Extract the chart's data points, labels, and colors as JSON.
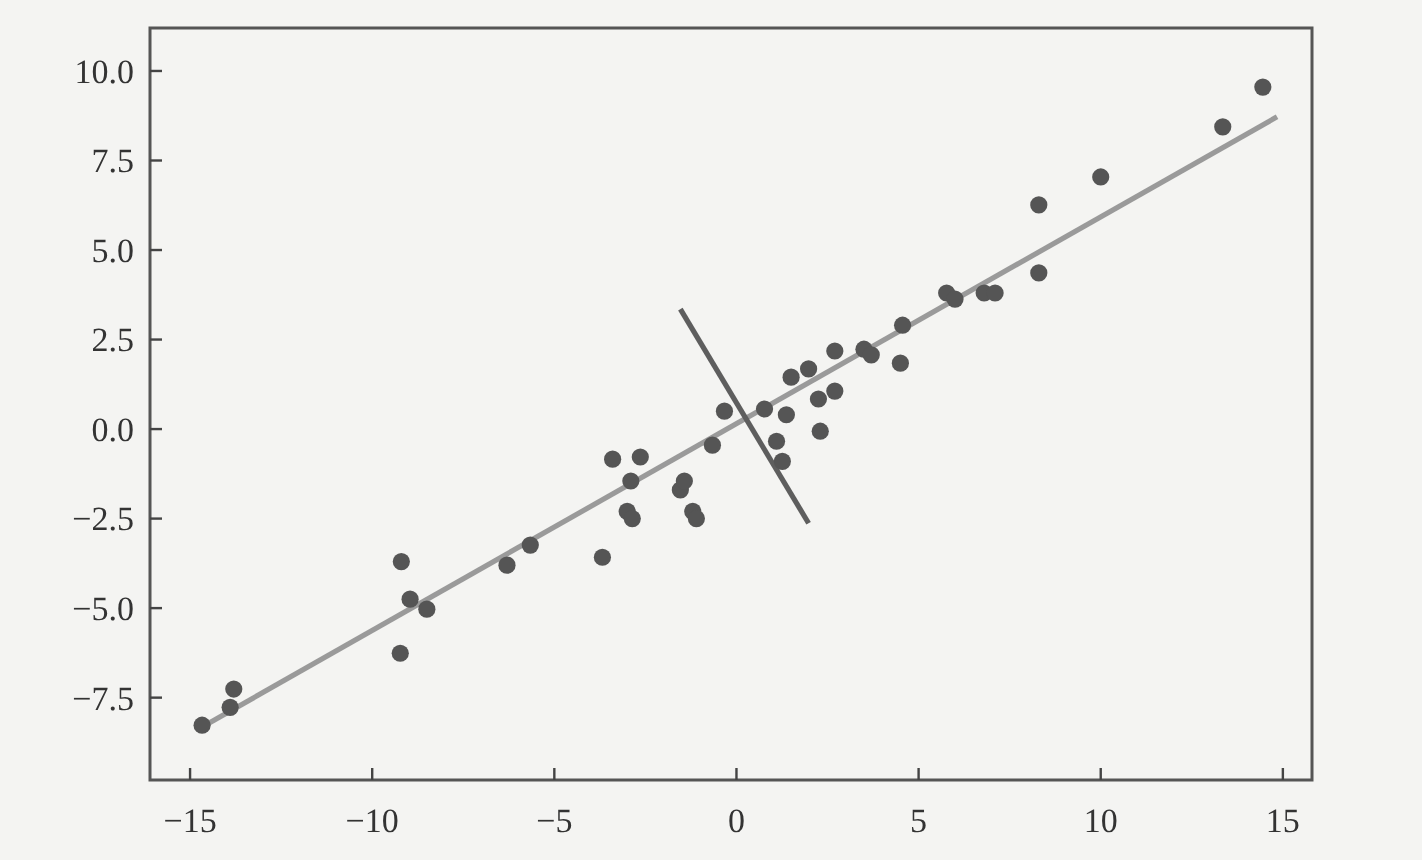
{
  "chart_data": {
    "type": "scatter",
    "xlim": [
      -16.1,
      15.8
    ],
    "ylim": [
      -9.8,
      11.2
    ],
    "xticks": [
      {
        "value": -15,
        "label": "−15"
      },
      {
        "value": -10,
        "label": "−10"
      },
      {
        "value": -5,
        "label": "−5"
      },
      0,
      5,
      10,
      15
    ],
    "yticks": [
      {
        "value": -7.5,
        "label": "−7.5"
      },
      {
        "value": -5,
        "label": "−5.0"
      },
      {
        "value": -2.5,
        "label": "−2.5"
      },
      {
        "value": 0,
        "label": "0.0"
      },
      {
        "value": 2.5,
        "label": "2.5"
      },
      {
        "value": 5,
        "label": "5.0"
      },
      {
        "value": 7.5,
        "label": "7.5"
      },
      {
        "value": 10,
        "label": "10.0"
      }
    ],
    "grid": false,
    "marker": "circle",
    "series": [
      {
        "type": "line",
        "color": "#9a9a9a",
        "x": [
          -14.67,
          14.84
        ],
        "values": [
          -8.32,
          8.72
        ],
        "marker": "none"
      },
      {
        "type": "line",
        "color": "#5e5e5e",
        "x": [
          -1.54,
          1.98
        ],
        "values": [
          3.35,
          -2.63
        ],
        "marker": "none"
      },
      {
        "color": "#555555",
        "x": [
          -14.67,
          -13.9,
          -13.8,
          -9.2,
          -8.96,
          -8.5,
          -9.23,
          -6.3,
          -5.66,
          -3.68,
          -3.4,
          -2.64,
          -2.9,
          -3.0,
          -2.86,
          -1.54,
          -1.43,
          -1.2,
          -1.1,
          -0.66,
          -0.33,
          0.77,
          1.1,
          1.37,
          2.3,
          1.26,
          1.5,
          1.98,
          2.25,
          2.7,
          2.7,
          3.5,
          3.7,
          4.5,
          4.56,
          5.77,
          6.0,
          6.8,
          7.1,
          8.3,
          8.3,
          10.0,
          13.35,
          14.45
        ],
        "values": [
          -8.27,
          -7.77,
          -7.26,
          -3.7,
          -4.75,
          -5.03,
          -6.26,
          -3.8,
          -3.24,
          -3.58,
          -0.84,
          -0.78,
          -1.45,
          -2.3,
          -2.5,
          -1.7,
          -1.45,
          -2.3,
          -2.5,
          -0.45,
          0.5,
          0.56,
          -0.34,
          0.4,
          -0.06,
          -0.9,
          1.45,
          1.68,
          0.84,
          1.06,
          2.18,
          2.23,
          2.07,
          1.84,
          2.9,
          3.8,
          3.63,
          3.8,
          3.8,
          6.26,
          4.36,
          7.04,
          8.44,
          9.55
        ]
      }
    ]
  }
}
